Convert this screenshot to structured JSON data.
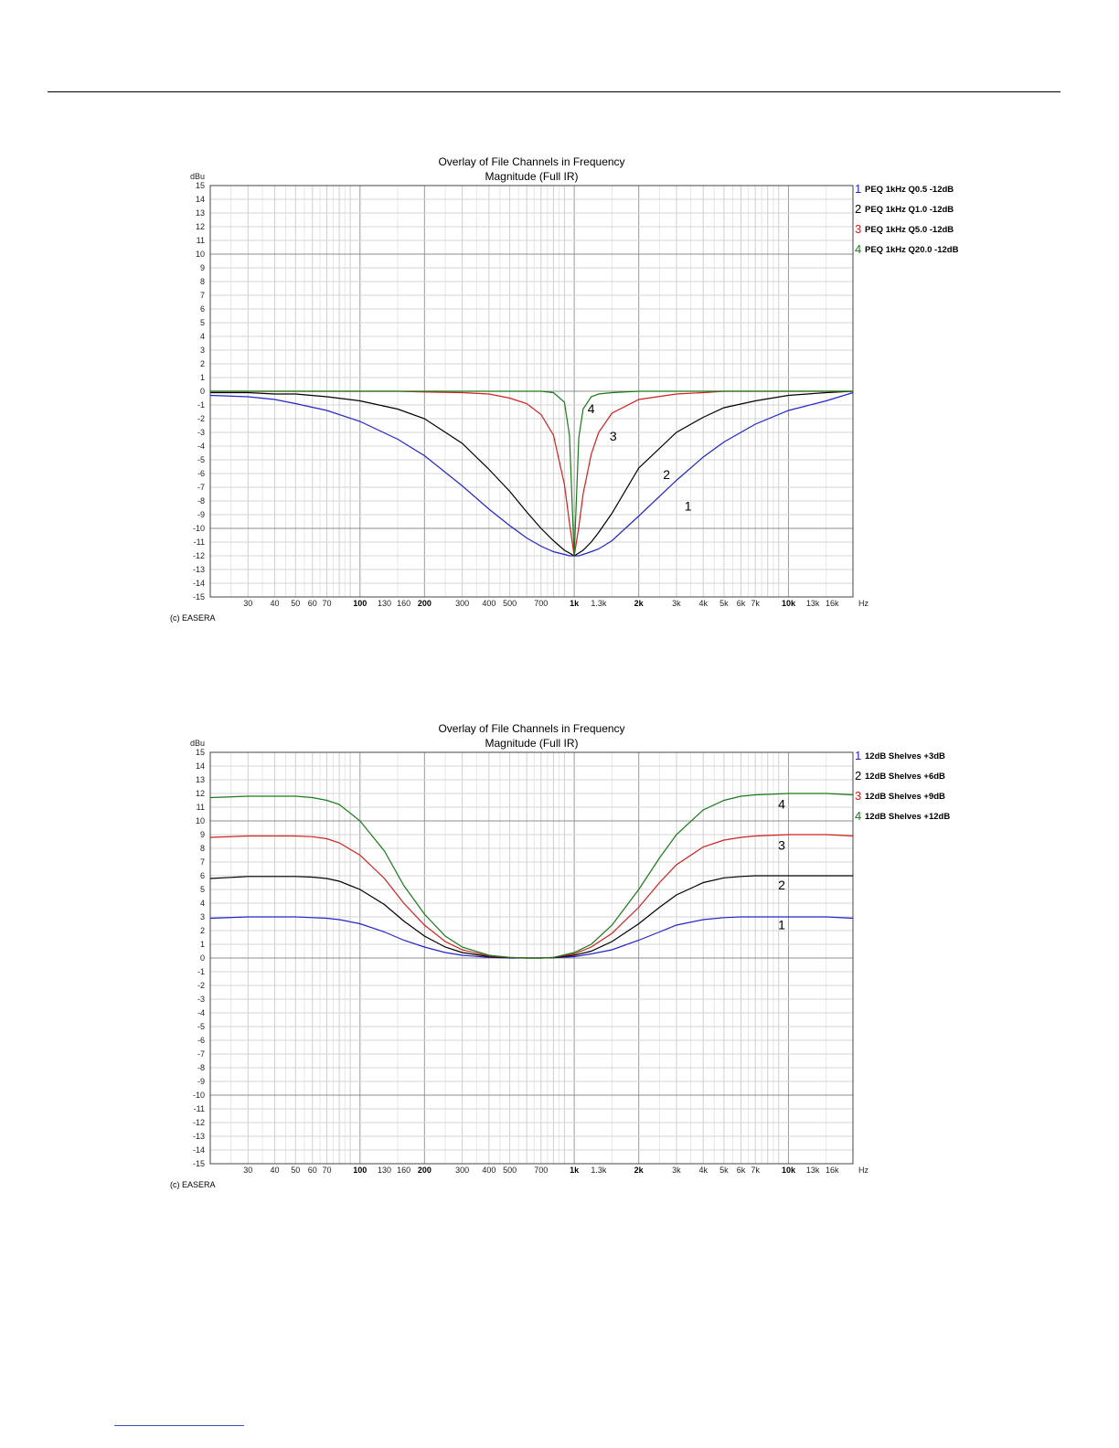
{
  "chart_data": [
    {
      "type": "line",
      "title": "Overlay of File Channels in Frequency",
      "subtitle": "Magnitude (Full IR)",
      "ylabel": "dBu",
      "xlabel": "Hz",
      "xscale": "log",
      "xlim": [
        20,
        20000
      ],
      "ylim": [
        -15,
        15
      ],
      "grid": true,
      "legend_position": "right",
      "credit": "(c) EASERA",
      "x_tick_labels": [
        "30",
        "40",
        "50",
        "60",
        "70",
        "100",
        "130",
        "160",
        "200",
        "300",
        "400",
        "500",
        "700",
        "1k",
        "1.3k",
        "2k",
        "3k",
        "4k",
        "5k",
        "6k",
        "7k",
        "10k",
        "13k",
        "16k"
      ],
      "x_tick_values": [
        30,
        40,
        50,
        60,
        70,
        100,
        130,
        160,
        200,
        300,
        400,
        500,
        700,
        1000,
        1300,
        2000,
        3000,
        4000,
        5000,
        6000,
        7000,
        10000,
        13000,
        16000
      ],
      "y_tick_labels": [
        "15",
        "14",
        "13",
        "12",
        "11",
        "10",
        "9",
        "8",
        "7",
        "6",
        "5",
        "4",
        "3",
        "2",
        "1",
        "0",
        "-1",
        "-2",
        "-3",
        "-4",
        "-5",
        "-6",
        "-7",
        "-8",
        "-9",
        "-10",
        "-11",
        "-12",
        "-13",
        "-14",
        "-15"
      ],
      "x": [
        20,
        30,
        40,
        50,
        70,
        100,
        150,
        200,
        300,
        400,
        500,
        600,
        700,
        800,
        900,
        950,
        1000,
        1050,
        1100,
        1200,
        1300,
        1500,
        2000,
        3000,
        4000,
        5000,
        7000,
        10000,
        15000,
        20000
      ],
      "series": [
        {
          "name": "PEQ 1kHz Q0.5 -12dB",
          "color": "#2424c8",
          "curve_label": "1",
          "label_at": [
            3400,
            -8.7
          ],
          "values": [
            -0.3,
            -0.4,
            -0.6,
            -0.9,
            -1.4,
            -2.2,
            -3.5,
            -4.7,
            -6.9,
            -8.6,
            -9.8,
            -10.7,
            -11.3,
            -11.7,
            -11.9,
            -12.0,
            -12.0,
            -12.0,
            -11.9,
            -11.7,
            -11.5,
            -10.9,
            -9.1,
            -6.5,
            -4.8,
            -3.7,
            -2.4,
            -1.4,
            -0.7,
            -0.1
          ]
        },
        {
          "name": "PEQ 1kHz Q1.0 -12dB",
          "color": "#000000",
          "curve_label": "2",
          "label_at": [
            2700,
            -6.4
          ],
          "values": [
            -0.1,
            -0.1,
            -0.2,
            -0.2,
            -0.4,
            -0.7,
            -1.3,
            -2.0,
            -3.8,
            -5.7,
            -7.3,
            -8.8,
            -10.0,
            -10.9,
            -11.6,
            -11.8,
            -12.0,
            -11.8,
            -11.6,
            -11.0,
            -10.3,
            -8.9,
            -5.6,
            -3.0,
            -1.9,
            -1.2,
            -0.7,
            -0.3,
            -0.1,
            0.0
          ]
        },
        {
          "name": "PEQ 1kHz Q5.0 -12dB",
          "color": "#d02020",
          "curve_label": "3",
          "label_at": [
            1520,
            -3.6
          ],
          "values": [
            0,
            0,
            0,
            0,
            0,
            0,
            0,
            -0.05,
            -0.1,
            -0.2,
            -0.5,
            -0.9,
            -1.7,
            -3.2,
            -6.8,
            -9.6,
            -12.0,
            -9.9,
            -7.5,
            -4.6,
            -3.0,
            -1.6,
            -0.6,
            -0.2,
            -0.1,
            0,
            0,
            0,
            0,
            0
          ]
        },
        {
          "name": "PEQ 1kHz Q20.0 -12dB",
          "color": "#1a7a1a",
          "curve_label": "4",
          "label_at": [
            1200,
            -1.6
          ],
          "values": [
            0,
            0,
            0,
            0,
            0,
            0,
            0,
            0,
            0,
            0,
            0,
            0,
            0,
            -0.1,
            -0.8,
            -3.2,
            -12.0,
            -3.4,
            -1.3,
            -0.4,
            -0.2,
            -0.1,
            0,
            0,
            0,
            0,
            0,
            0,
            0,
            0
          ]
        }
      ]
    },
    {
      "type": "line",
      "title": "Overlay of File Channels in Frequency",
      "subtitle": "Magnitude (Full IR)",
      "ylabel": "dBu",
      "xlabel": "Hz",
      "xscale": "log",
      "xlim": [
        20,
        20000
      ],
      "ylim": [
        -15,
        15
      ],
      "grid": true,
      "legend_position": "right",
      "credit": "(c) EASERA",
      "x_tick_labels": [
        "30",
        "40",
        "50",
        "60",
        "70",
        "100",
        "130",
        "160",
        "200",
        "300",
        "400",
        "500",
        "700",
        "1k",
        "1.3k",
        "2k",
        "3k",
        "4k",
        "5k",
        "6k",
        "7k",
        "10k",
        "13k",
        "16k"
      ],
      "x_tick_values": [
        30,
        40,
        50,
        60,
        70,
        100,
        130,
        160,
        200,
        300,
        400,
        500,
        700,
        1000,
        1300,
        2000,
        3000,
        4000,
        5000,
        6000,
        7000,
        10000,
        13000,
        16000
      ],
      "y_tick_labels": [
        "15",
        "14",
        "13",
        "12",
        "11",
        "10",
        "9",
        "8",
        "7",
        "6",
        "5",
        "4",
        "3",
        "2",
        "1",
        "0",
        "-1",
        "-2",
        "-3",
        "-4",
        "-5",
        "-6",
        "-7",
        "-8",
        "-9",
        "-10",
        "-11",
        "-12",
        "-13",
        "-14",
        "-15"
      ],
      "x": [
        20,
        30,
        50,
        60,
        70,
        80,
        100,
        130,
        160,
        200,
        250,
        300,
        400,
        500,
        600,
        700,
        800,
        1000,
        1200,
        1500,
        2000,
        2500,
        3000,
        4000,
        5000,
        6000,
        7000,
        10000,
        15000,
        20000
      ],
      "series": [
        {
          "name": "12dB Shelves +3dB",
          "color": "#2424c8",
          "curve_label": "1",
          "label_at": [
            9300,
            2.1
          ],
          "values": [
            2.9,
            3.0,
            3.0,
            2.95,
            2.9,
            2.8,
            2.5,
            1.9,
            1.3,
            0.8,
            0.4,
            0.2,
            0.05,
            0.0,
            0.0,
            0.0,
            0.02,
            0.1,
            0.3,
            0.6,
            1.3,
            1.9,
            2.4,
            2.8,
            2.95,
            3.0,
            3.0,
            3.0,
            3.0,
            2.9
          ]
        },
        {
          "name": "12dB Shelves +6dB",
          "color": "#000000",
          "curve_label": "2",
          "label_at": [
            9300,
            5.0
          ],
          "values": [
            5.8,
            5.95,
            5.95,
            5.9,
            5.8,
            5.6,
            5.0,
            3.9,
            2.7,
            1.6,
            0.8,
            0.4,
            0.1,
            0.03,
            0.0,
            0.0,
            0.03,
            0.2,
            0.5,
            1.2,
            2.5,
            3.7,
            4.6,
            5.5,
            5.85,
            5.95,
            6.0,
            6.0,
            6.0,
            6.0
          ]
        },
        {
          "name": "12dB Shelves +9dB",
          "color": "#d02020",
          "curve_label": "3",
          "label_at": [
            9300,
            7.9
          ],
          "values": [
            8.8,
            8.9,
            8.9,
            8.85,
            8.7,
            8.4,
            7.5,
            5.8,
            4.0,
            2.4,
            1.2,
            0.6,
            0.15,
            0.05,
            0.0,
            0.0,
            0.05,
            0.3,
            0.8,
            1.8,
            3.7,
            5.5,
            6.8,
            8.1,
            8.6,
            8.8,
            8.9,
            9.0,
            9.0,
            8.9
          ]
        },
        {
          "name": "12dB Shelves +12dB",
          "color": "#1a7a1a",
          "curve_label": "4",
          "label_at": [
            9300,
            10.9
          ],
          "values": [
            11.7,
            11.8,
            11.8,
            11.7,
            11.5,
            11.2,
            10.0,
            7.8,
            5.3,
            3.2,
            1.6,
            0.8,
            0.2,
            0.05,
            0.0,
            0.0,
            0.05,
            0.4,
            1.0,
            2.4,
            5.0,
            7.3,
            9.0,
            10.8,
            11.5,
            11.8,
            11.9,
            12.0,
            12.0,
            11.9
          ]
        }
      ]
    }
  ]
}
